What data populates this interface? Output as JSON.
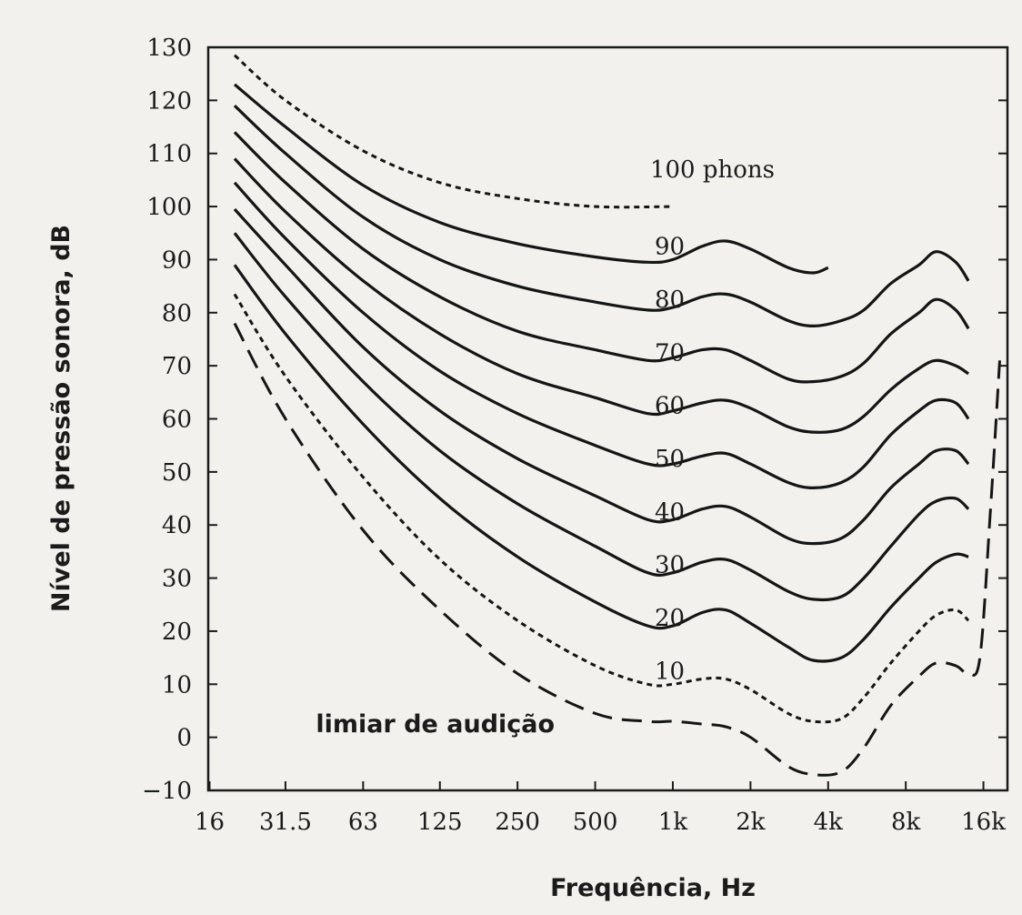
{
  "chart_data": {
    "type": "line",
    "title": "",
    "xlabel": "Frequência, Hz",
    "ylabel": "Nível de pressão sonora, dB",
    "xscale": "log",
    "xlim": [
      16,
      20000
    ],
    "ylim": [
      -10,
      130
    ],
    "grid": false,
    "x_ticks": [
      {
        "value": 16,
        "label": "16"
      },
      {
        "value": 31.5,
        "label": "31.5"
      },
      {
        "value": 63,
        "label": "63"
      },
      {
        "value": 125,
        "label": "125"
      },
      {
        "value": 250,
        "label": "250"
      },
      {
        "value": 500,
        "label": "500"
      },
      {
        "value": 1000,
        "label": "1k"
      },
      {
        "value": 2000,
        "label": "2k"
      },
      {
        "value": 4000,
        "label": "4k"
      },
      {
        "value": 8000,
        "label": "8k"
      },
      {
        "value": 16000,
        "label": "16k"
      }
    ],
    "y_ticks": [
      {
        "value": 130,
        "label": "130"
      },
      {
        "value": 120,
        "label": "120"
      },
      {
        "value": 110,
        "label": "110"
      },
      {
        "value": 100,
        "label": "100"
      },
      {
        "value": 90,
        "label": "90"
      },
      {
        "value": 80,
        "label": "80"
      },
      {
        "value": 70,
        "label": "70"
      },
      {
        "value": 60,
        "label": "60"
      },
      {
        "value": 50,
        "label": "50"
      },
      {
        "value": 40,
        "label": "40"
      },
      {
        "value": 30,
        "label": "30"
      },
      {
        "value": 20,
        "label": "20"
      },
      {
        "value": 10,
        "label": "10"
      },
      {
        "value": 0,
        "label": "0"
      },
      {
        "value": -10,
        "label": "−10"
      }
    ],
    "series": [
      {
        "label": "100 phons",
        "style": "dotted",
        "points": [
          [
            20,
            128.5
          ],
          [
            31.5,
            120
          ],
          [
            63,
            110.5
          ],
          [
            125,
            104.5
          ],
          [
            250,
            101.5
          ],
          [
            500,
            100
          ],
          [
            1000,
            100
          ]
        ]
      },
      {
        "label": "90",
        "style": "solid",
        "points": [
          [
            20,
            123
          ],
          [
            31.5,
            115
          ],
          [
            63,
            104
          ],
          [
            125,
            97
          ],
          [
            250,
            93
          ],
          [
            500,
            90.5
          ],
          [
            800,
            89.5
          ],
          [
            1000,
            90
          ],
          [
            1300,
            92.5
          ],
          [
            1600,
            93.5
          ],
          [
            2000,
            92
          ],
          [
            2800,
            88.5
          ],
          [
            3500,
            87.5
          ],
          [
            4000,
            88.5
          ]
        ]
      },
      {
        "label": "80",
        "style": "solid",
        "points": [
          [
            20,
            119
          ],
          [
            31.5,
            110
          ],
          [
            63,
            98
          ],
          [
            125,
            90
          ],
          [
            250,
            85
          ],
          [
            500,
            82
          ],
          [
            800,
            80.5
          ],
          [
            1000,
            81
          ],
          [
            1300,
            83
          ],
          [
            1600,
            83.5
          ],
          [
            2000,
            82
          ],
          [
            2800,
            78.5
          ],
          [
            3500,
            77.5
          ],
          [
            4500,
            78.5
          ],
          [
            5500,
            80.5
          ],
          [
            7000,
            85.5
          ],
          [
            9000,
            89
          ],
          [
            10500,
            91.5
          ],
          [
            12500,
            89.5
          ],
          [
            14000,
            86
          ]
        ]
      },
      {
        "label": "70",
        "style": "solid",
        "points": [
          [
            20,
            114
          ],
          [
            31.5,
            104.5
          ],
          [
            63,
            92
          ],
          [
            125,
            83
          ],
          [
            250,
            76.5
          ],
          [
            500,
            73
          ],
          [
            800,
            71
          ],
          [
            1000,
            71.5
          ],
          [
            1300,
            73
          ],
          [
            1600,
            73
          ],
          [
            2000,
            71
          ],
          [
            2800,
            67.5
          ],
          [
            3500,
            67
          ],
          [
            4500,
            68
          ],
          [
            5500,
            70.5
          ],
          [
            7000,
            76
          ],
          [
            9000,
            80
          ],
          [
            10500,
            82.5
          ],
          [
            12500,
            80.5
          ],
          [
            14000,
            77
          ]
        ]
      },
      {
        "label": "60",
        "style": "solid",
        "points": [
          [
            20,
            109
          ],
          [
            31.5,
            99
          ],
          [
            63,
            86
          ],
          [
            125,
            76
          ],
          [
            250,
            68.5
          ],
          [
            500,
            64
          ],
          [
            800,
            61
          ],
          [
            1000,
            61.5
          ],
          [
            1300,
            63
          ],
          [
            1600,
            63.5
          ],
          [
            2000,
            62
          ],
          [
            2800,
            58.5
          ],
          [
            3500,
            57.5
          ],
          [
            4500,
            58
          ],
          [
            5500,
            60.5
          ],
          [
            7000,
            65.5
          ],
          [
            9000,
            69.5
          ],
          [
            10500,
            71
          ],
          [
            12500,
            70
          ],
          [
            14000,
            68.5
          ]
        ]
      },
      {
        "label": "50",
        "style": "solid",
        "points": [
          [
            20,
            104.5
          ],
          [
            31.5,
            94
          ],
          [
            63,
            80
          ],
          [
            125,
            69
          ],
          [
            250,
            61
          ],
          [
            500,
            55
          ],
          [
            800,
            51.5
          ],
          [
            1000,
            51.5
          ],
          [
            1300,
            53
          ],
          [
            1600,
            53.5
          ],
          [
            2000,
            51.5
          ],
          [
            2800,
            48
          ],
          [
            3500,
            47
          ],
          [
            4500,
            48
          ],
          [
            5500,
            51
          ],
          [
            7000,
            57
          ],
          [
            9000,
            61.5
          ],
          [
            10500,
            63.5
          ],
          [
            12500,
            63
          ],
          [
            14000,
            60
          ]
        ]
      },
      {
        "label": "40",
        "style": "solid",
        "points": [
          [
            20,
            99.5
          ],
          [
            31.5,
            89
          ],
          [
            63,
            73.5
          ],
          [
            125,
            61.5
          ],
          [
            250,
            52.5
          ],
          [
            500,
            45.5
          ],
          [
            800,
            41
          ],
          [
            1000,
            41
          ],
          [
            1300,
            43
          ],
          [
            1600,
            43.5
          ],
          [
            2000,
            41.5
          ],
          [
            2800,
            37.5
          ],
          [
            3500,
            36.5
          ],
          [
            4500,
            37.5
          ],
          [
            5500,
            41
          ],
          [
            7000,
            47
          ],
          [
            9000,
            51.5
          ],
          [
            10500,
            54
          ],
          [
            12500,
            54
          ],
          [
            14000,
            51.5
          ]
        ]
      },
      {
        "label": "30",
        "style": "solid",
        "points": [
          [
            20,
            95
          ],
          [
            31.5,
            83
          ],
          [
            63,
            67
          ],
          [
            125,
            54
          ],
          [
            250,
            44
          ],
          [
            500,
            36
          ],
          [
            800,
            31
          ],
          [
            1000,
            31
          ],
          [
            1300,
            33
          ],
          [
            1600,
            33.5
          ],
          [
            2000,
            31.5
          ],
          [
            2800,
            27.5
          ],
          [
            3500,
            26
          ],
          [
            4500,
            26.5
          ],
          [
            5500,
            30
          ],
          [
            7000,
            36
          ],
          [
            9000,
            42
          ],
          [
            10500,
            44.5
          ],
          [
            12500,
            45
          ],
          [
            14000,
            43
          ]
        ]
      },
      {
        "label": "20",
        "style": "solid",
        "points": [
          [
            20,
            89
          ],
          [
            31.5,
            76
          ],
          [
            63,
            59
          ],
          [
            125,
            45
          ],
          [
            250,
            34
          ],
          [
            500,
            25.5
          ],
          [
            800,
            21
          ],
          [
            1000,
            21
          ],
          [
            1300,
            23.5
          ],
          [
            1600,
            24
          ],
          [
            2000,
            21.5
          ],
          [
            2800,
            17
          ],
          [
            3500,
            14.5
          ],
          [
            4500,
            15
          ],
          [
            5500,
            18.5
          ],
          [
            7000,
            24.5
          ],
          [
            9000,
            30
          ],
          [
            10500,
            33
          ],
          [
            12500,
            34.5
          ],
          [
            14000,
            34
          ]
        ]
      },
      {
        "label": "10",
        "style": "dotted",
        "points": [
          [
            20,
            83.5
          ],
          [
            31.5,
            68
          ],
          [
            63,
            49
          ],
          [
            125,
            33.5
          ],
          [
            250,
            22
          ],
          [
            500,
            13.5
          ],
          [
            800,
            10
          ],
          [
            1000,
            10
          ],
          [
            1300,
            11
          ],
          [
            1600,
            11
          ],
          [
            2000,
            9
          ],
          [
            2800,
            4.5
          ],
          [
            3500,
            3
          ],
          [
            4500,
            3.5
          ],
          [
            5500,
            7.5
          ],
          [
            7000,
            14
          ],
          [
            9000,
            20
          ],
          [
            10500,
            23
          ],
          [
            12500,
            24
          ],
          [
            14000,
            22
          ]
        ]
      },
      {
        "label": "limiar de audição",
        "style": "dashed",
        "points": [
          [
            20,
            78
          ],
          [
            31.5,
            60
          ],
          [
            63,
            39
          ],
          [
            125,
            24
          ],
          [
            250,
            12
          ],
          [
            500,
            4.5
          ],
          [
            800,
            3
          ],
          [
            1000,
            3
          ],
          [
            1300,
            2.5
          ],
          [
            1600,
            2
          ],
          [
            2000,
            0
          ],
          [
            2800,
            -5.5
          ],
          [
            3500,
            -7
          ],
          [
            4500,
            -6.5
          ],
          [
            5500,
            -2
          ],
          [
            7000,
            6
          ],
          [
            9000,
            11.5
          ],
          [
            10500,
            14
          ],
          [
            12500,
            13.5
          ],
          [
            14000,
            12
          ],
          [
            15500,
            15
          ],
          [
            17000,
            42
          ],
          [
            18500,
            71
          ]
        ]
      }
    ]
  }
}
